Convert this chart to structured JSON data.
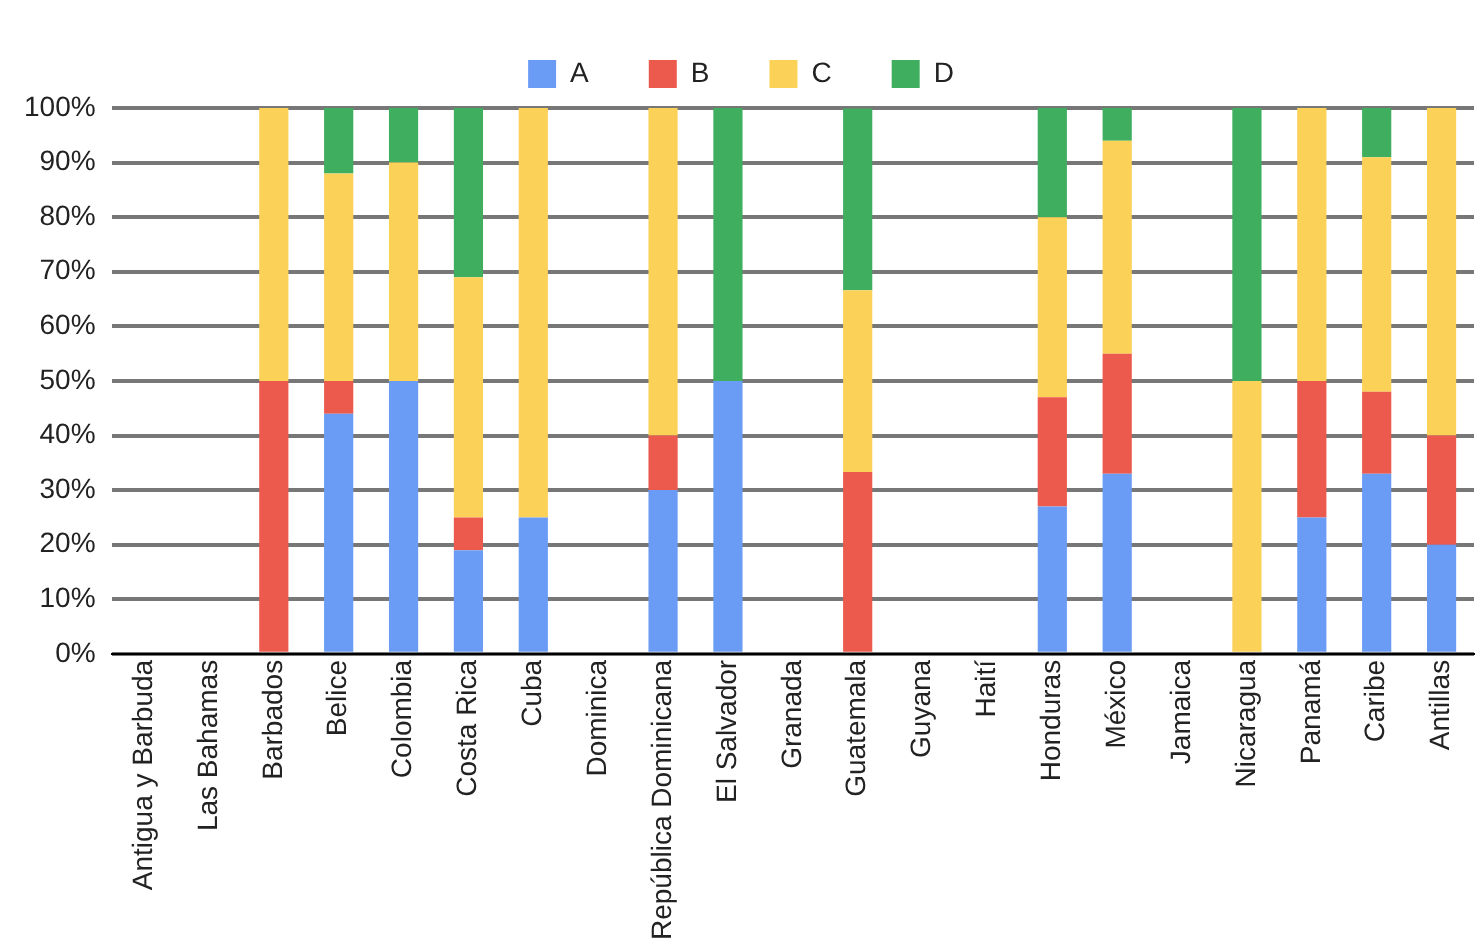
{
  "chart_data": {
    "type": "bar",
    "stacked": true,
    "legend": "top",
    "grid": "y",
    "categories": [
      "Antigua y Barbuda",
      "Las Bahamas",
      "Barbados",
      "Belice",
      "Colombia",
      "Costa Rica",
      "Cuba",
      "Dominica",
      "República Dominicana",
      "El Salvador",
      "Granada",
      "Guatemala",
      "Guyana",
      "Haití",
      "Honduras",
      "México",
      "Jamaica",
      "Nicaragua",
      "Panamá",
      "Caribe",
      "Antillas"
    ],
    "series": [
      {
        "name": "A",
        "color": "#6a9cf5",
        "values": [
          null,
          null,
          0,
          44,
          50,
          19,
          25,
          null,
          30,
          50,
          null,
          0,
          null,
          null,
          27,
          33,
          null,
          0,
          25,
          33,
          20
        ]
      },
      {
        "name": "B",
        "color": "#ec5a4e",
        "values": [
          null,
          null,
          50,
          6,
          0,
          6,
          0,
          null,
          10,
          0,
          null,
          33.3,
          null,
          null,
          20,
          22,
          null,
          0,
          25,
          15,
          20
        ]
      },
      {
        "name": "C",
        "color": "#fbd158",
        "values": [
          null,
          null,
          50,
          38,
          40,
          44,
          75,
          null,
          60,
          0,
          null,
          33.3,
          null,
          null,
          33,
          39,
          null,
          50,
          50,
          43,
          60
        ]
      },
      {
        "name": "D",
        "color": "#3fae5f",
        "values": [
          null,
          null,
          0,
          12,
          10,
          31,
          0,
          null,
          0,
          50,
          null,
          33.3,
          null,
          null,
          20,
          6,
          null,
          50,
          0,
          9,
          0
        ]
      }
    ],
    "ylim": [
      0,
      100
    ],
    "yticks": [
      {
        "value": 0,
        "label": "0%"
      },
      {
        "value": 10,
        "label": "10%"
      },
      {
        "value": 20,
        "label": "20%"
      },
      {
        "value": 30,
        "label": "30%"
      },
      {
        "value": 40,
        "label": "40%"
      },
      {
        "value": 50,
        "label": "50%"
      },
      {
        "value": 60,
        "label": "60%"
      },
      {
        "value": 70,
        "label": "70%"
      },
      {
        "value": 80,
        "label": "80%"
      },
      {
        "value": 90,
        "label": "90%"
      },
      {
        "value": 100,
        "label": "100%"
      }
    ]
  }
}
